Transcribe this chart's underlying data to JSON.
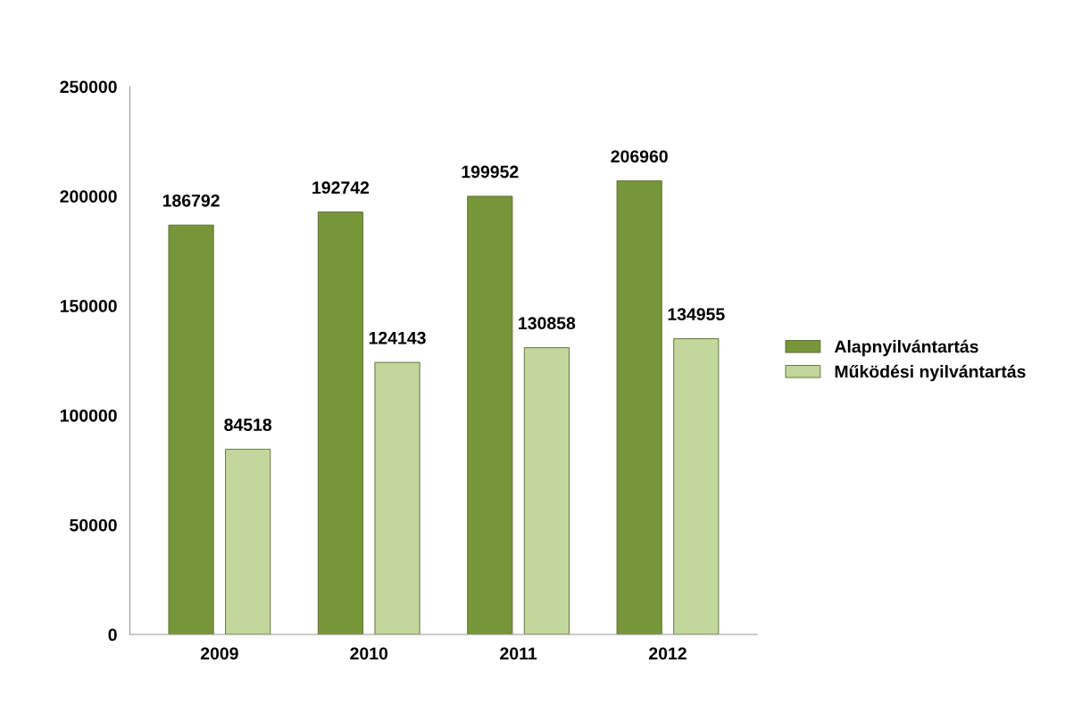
{
  "chart_data": {
    "type": "bar",
    "categories": [
      "2009",
      "2010",
      "2011",
      "2012"
    ],
    "series": [
      {
        "name": "Alapnyilvántartás",
        "color": "#77963a",
        "values": [
          186792,
          192742,
          199952,
          206960
        ]
      },
      {
        "name": "Működési nyilvántartás",
        "color": "#c3d69b",
        "values": [
          84518,
          124143,
          130858,
          134955
        ]
      }
    ],
    "ylim": [
      0,
      250000
    ],
    "yticks": [
      0,
      50000,
      100000,
      150000,
      200000,
      250000
    ],
    "data_labels": true,
    "legend": "right",
    "grid": false
  }
}
